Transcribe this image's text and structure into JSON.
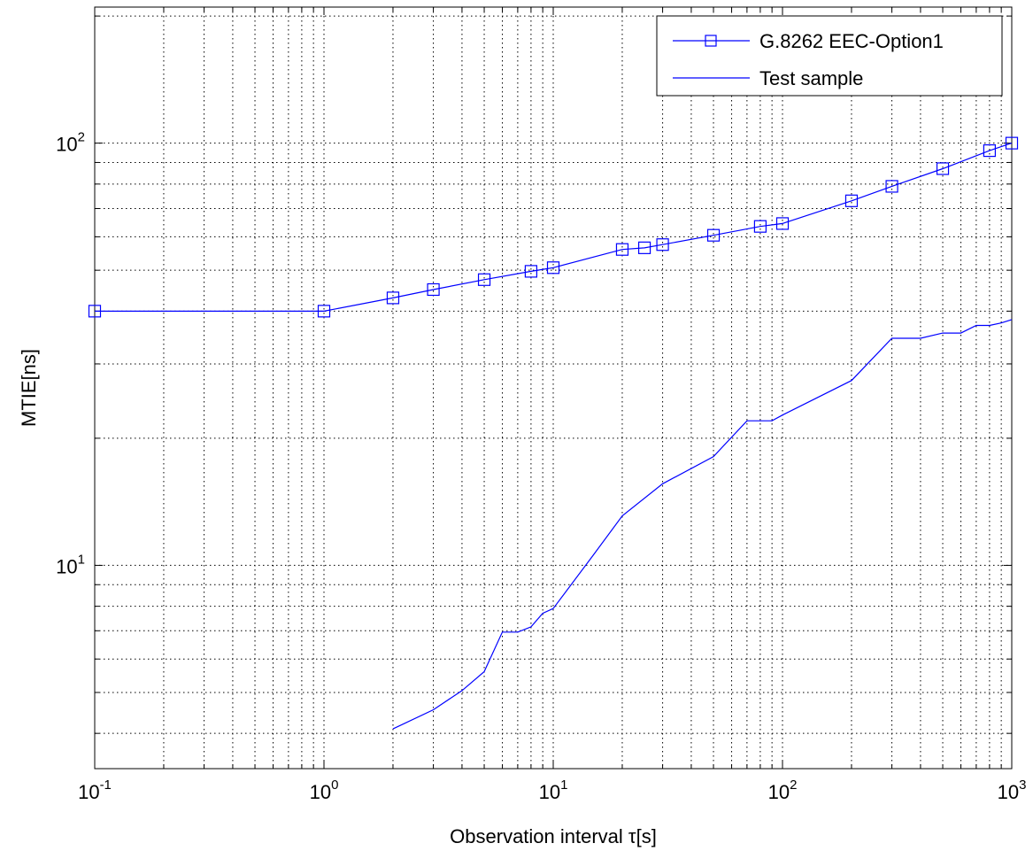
{
  "chart_data": {
    "type": "line",
    "xlabel": "Observation interval τ[s]",
    "ylabel": "MTIE[ns]",
    "xscale": "log",
    "yscale": "log",
    "xlim": [
      0.1,
      1000
    ],
    "ylim": [
      3.3,
      210
    ],
    "grid": true,
    "legend_position": "top-right",
    "x_ticks": [
      {
        "base": "10",
        "exp": "-1"
      },
      {
        "base": "10",
        "exp": "0"
      },
      {
        "base": "10",
        "exp": "1"
      },
      {
        "base": "10",
        "exp": "2"
      },
      {
        "base": "10",
        "exp": "3"
      }
    ],
    "y_ticks": [
      {
        "base": "10",
        "exp": "1"
      },
      {
        "base": "10",
        "exp": "2"
      }
    ],
    "series": [
      {
        "name": "G.8262 EEC-Option1",
        "color": "#0000ff",
        "marker": "square",
        "x": [
          0.1,
          1,
          2,
          3,
          5,
          8,
          10,
          20,
          25,
          30,
          50,
          80,
          100,
          200,
          300,
          500,
          800,
          1000
        ],
        "y": [
          40,
          40,
          43,
          45,
          47.5,
          49.7,
          50.7,
          56,
          56.5,
          57.5,
          60.5,
          63.5,
          64.5,
          73,
          79,
          87,
          96,
          100
        ]
      },
      {
        "name": "Test sample",
        "color": "#0000ff",
        "marker": "none",
        "x": [
          2,
          3,
          4,
          5,
          6,
          7,
          8,
          9,
          10,
          15,
          20,
          30,
          50,
          70,
          90,
          100,
          200,
          300,
          400,
          500,
          600,
          700,
          800,
          900,
          1000
        ],
        "y": [
          4.1,
          4.55,
          5.05,
          5.6,
          6.95,
          6.95,
          7.15,
          7.7,
          7.9,
          10.6,
          13.1,
          15.6,
          18.1,
          22,
          22,
          22.7,
          27.4,
          34.5,
          34.5,
          35.5,
          35.5,
          37,
          37,
          37.5,
          38.2
        ]
      }
    ]
  }
}
